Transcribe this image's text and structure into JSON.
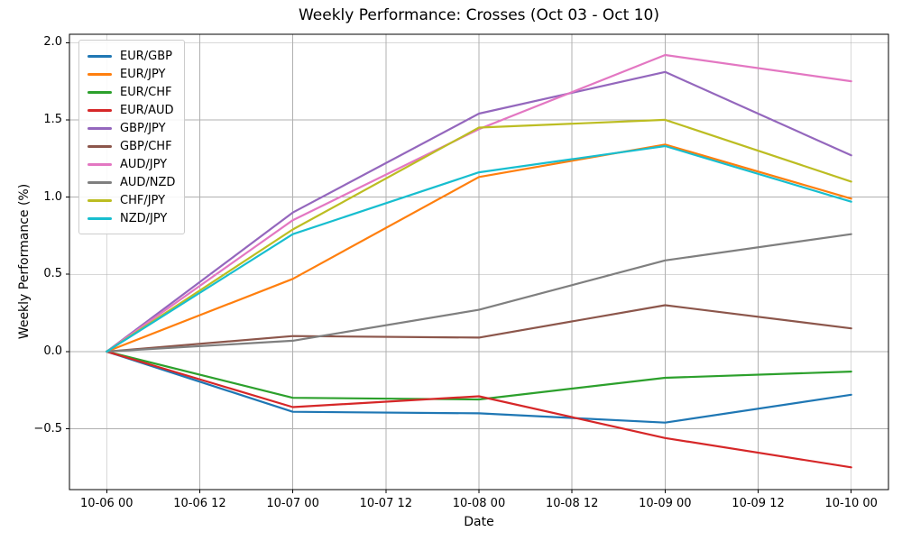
{
  "figure": {
    "background": "#ffffff",
    "grid_color": "#b0b0b0",
    "spine_color": "#000000"
  },
  "chart_data": {
    "type": "line",
    "title": "Weekly Performance: Crosses (Oct 03 - Oct 10)",
    "xlabel": "Date",
    "ylabel": "Weekly Performance (%)",
    "grid": true,
    "legend_position": "upper-left",
    "xlim_days": [
      -0.2,
      4.2
    ],
    "ylim": [
      -0.894,
      2.054
    ],
    "x_ticks": [
      {
        "day": 0.0,
        "label": "10-06 00"
      },
      {
        "day": 0.5,
        "label": "10-06 12"
      },
      {
        "day": 1.0,
        "label": "10-07 00"
      },
      {
        "day": 1.5,
        "label": "10-07 12"
      },
      {
        "day": 2.0,
        "label": "10-08 00"
      },
      {
        "day": 2.5,
        "label": "10-08 12"
      },
      {
        "day": 3.0,
        "label": "10-09 00"
      },
      {
        "day": 3.5,
        "label": "10-09 12"
      },
      {
        "day": 4.0,
        "label": "10-10 00"
      }
    ],
    "y_ticks": [
      {
        "value": -0.5,
        "label": "−0.5"
      },
      {
        "value": 0.0,
        "label": "0.0"
      },
      {
        "value": 0.5,
        "label": "0.5"
      },
      {
        "value": 1.0,
        "label": "1.0"
      },
      {
        "value": 1.5,
        "label": "1.5"
      },
      {
        "value": 2.0,
        "label": "2.0"
      }
    ],
    "x_days": [
      0,
      1,
      2,
      3,
      4
    ],
    "x_point_labels": [
      "10-06 00",
      "10-07 00",
      "10-08 00",
      "10-09 00",
      "10-10 00"
    ],
    "series": [
      {
        "name": "EUR/GBP",
        "color": "#1f77b4",
        "values": [
          0.0,
          -0.39,
          -0.4,
          -0.46,
          -0.28
        ]
      },
      {
        "name": "EUR/JPY",
        "color": "#ff7f0e",
        "values": [
          0.0,
          0.47,
          1.13,
          1.34,
          0.99
        ]
      },
      {
        "name": "EUR/CHF",
        "color": "#2ca02c",
        "values": [
          0.0,
          -0.3,
          -0.31,
          -0.17,
          -0.13
        ]
      },
      {
        "name": "EUR/AUD",
        "color": "#d62728",
        "values": [
          0.0,
          -0.36,
          -0.29,
          -0.56,
          -0.75
        ]
      },
      {
        "name": "GBP/JPY",
        "color": "#9467bd",
        "values": [
          0.0,
          0.9,
          1.54,
          1.81,
          1.27
        ]
      },
      {
        "name": "GBP/CHF",
        "color": "#8c564b",
        "values": [
          0.0,
          0.1,
          0.09,
          0.3,
          0.15
        ]
      },
      {
        "name": "AUD/JPY",
        "color": "#e377c2",
        "values": [
          0.0,
          0.85,
          1.44,
          1.92,
          1.75
        ]
      },
      {
        "name": "AUD/NZD",
        "color": "#7f7f7f",
        "values": [
          0.0,
          0.07,
          0.27,
          0.59,
          0.76
        ]
      },
      {
        "name": "CHF/JPY",
        "color": "#bcbd22",
        "values": [
          0.0,
          0.79,
          1.45,
          1.5,
          1.1
        ]
      },
      {
        "name": "NZD/JPY",
        "color": "#17becf",
        "values": [
          0.0,
          0.76,
          1.16,
          1.33,
          0.97
        ]
      }
    ]
  }
}
